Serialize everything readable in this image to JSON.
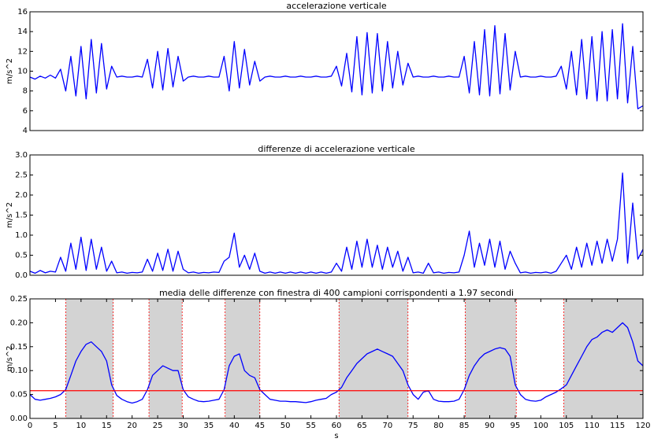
{
  "chart_data": [
    {
      "type": "line",
      "title": "accelerazione verticale",
      "ylabel": "m/s^2",
      "color": "#0000ff",
      "xlim": [
        0,
        120
      ],
      "ylim": [
        4,
        16
      ],
      "yticks": [
        4,
        6,
        8,
        10,
        12,
        14,
        16
      ],
      "x": [
        0,
        1,
        2,
        3,
        4,
        5,
        6,
        7,
        8,
        9,
        10,
        11,
        12,
        13,
        14,
        15,
        16,
        17,
        18,
        19,
        20,
        21,
        22,
        23,
        24,
        25,
        26,
        27,
        28,
        29,
        30,
        31,
        32,
        33,
        34,
        35,
        36,
        37,
        38,
        39,
        40,
        41,
        42,
        43,
        44,
        45,
        46,
        47,
        48,
        49,
        50,
        51,
        52,
        53,
        54,
        55,
        56,
        57,
        58,
        59,
        60,
        61,
        62,
        63,
        64,
        65,
        66,
        67,
        68,
        69,
        70,
        71,
        72,
        73,
        74,
        75,
        76,
        77,
        78,
        79,
        80,
        81,
        82,
        83,
        84,
        85,
        86,
        87,
        88,
        89,
        90,
        91,
        92,
        93,
        94,
        95,
        96,
        97,
        98,
        99,
        100,
        101,
        102,
        103,
        104,
        105,
        106,
        107,
        108,
        109,
        110,
        111,
        112,
        113,
        114,
        115,
        116,
        117,
        118,
        119,
        120
      ],
      "values": [
        9.4,
        9.2,
        9.5,
        9.3,
        9.6,
        9.3,
        10.2,
        8.0,
        11.5,
        7.5,
        12.5,
        7.2,
        13.2,
        7.8,
        12.8,
        8.2,
        10.5,
        9.4,
        9.5,
        9.4,
        9.4,
        9.5,
        9.4,
        11.2,
        8.3,
        12.0,
        8.1,
        12.3,
        8.4,
        11.5,
        9.0,
        9.4,
        9.5,
        9.4,
        9.4,
        9.5,
        9.4,
        9.4,
        11.5,
        8.0,
        13.0,
        8.3,
        12.2,
        8.6,
        11.0,
        9.0,
        9.4,
        9.5,
        9.4,
        9.4,
        9.5,
        9.4,
        9.4,
        9.5,
        9.4,
        9.4,
        9.5,
        9.4,
        9.4,
        9.5,
        10.5,
        8.5,
        11.8,
        7.9,
        13.5,
        7.6,
        13.9,
        7.8,
        13.8,
        8.0,
        13.0,
        8.3,
        12.0,
        8.6,
        10.8,
        9.4,
        9.5,
        9.4,
        9.4,
        9.5,
        9.4,
        9.4,
        9.5,
        9.4,
        9.4,
        11.5,
        7.8,
        13.0,
        7.6,
        14.2,
        7.5,
        14.6,
        7.7,
        13.8,
        8.1,
        12.0,
        9.4,
        9.5,
        9.4,
        9.4,
        9.5,
        9.4,
        9.4,
        9.5,
        10.5,
        8.2,
        12.0,
        7.6,
        13.2,
        7.2,
        13.5,
        7.0,
        14.0,
        7.0,
        14.2,
        7.2,
        14.8,
        6.8,
        12.5,
        6.2,
        6.5
      ]
    },
    {
      "type": "line",
      "title": "differenze di accelerazione verticale",
      "ylabel": "m/s^2",
      "color": "#0000ff",
      "xlim": [
        0,
        120
      ],
      "ylim": [
        0,
        3
      ],
      "yticks": [
        {
          "value": 0,
          "label": "0.0"
        },
        0.5,
        {
          "value": 1,
          "label": "1.0"
        },
        1.5,
        {
          "value": 2,
          "label": "2.0"
        },
        2.5,
        {
          "value": 3,
          "label": "3.0"
        }
      ],
      "x": [
        0,
        1,
        2,
        3,
        4,
        5,
        6,
        7,
        8,
        9,
        10,
        11,
        12,
        13,
        14,
        15,
        16,
        17,
        18,
        19,
        20,
        21,
        22,
        23,
        24,
        25,
        26,
        27,
        28,
        29,
        30,
        31,
        32,
        33,
        34,
        35,
        36,
        37,
        38,
        39,
        40,
        41,
        42,
        43,
        44,
        45,
        46,
        47,
        48,
        49,
        50,
        51,
        52,
        53,
        54,
        55,
        56,
        57,
        58,
        59,
        60,
        61,
        62,
        63,
        64,
        65,
        66,
        67,
        68,
        69,
        70,
        71,
        72,
        73,
        74,
        75,
        76,
        77,
        78,
        79,
        80,
        81,
        82,
        83,
        84,
        85,
        86,
        87,
        88,
        89,
        90,
        91,
        92,
        93,
        94,
        95,
        96,
        97,
        98,
        99,
        100,
        101,
        102,
        103,
        104,
        105,
        106,
        107,
        108,
        109,
        110,
        111,
        112,
        113,
        114,
        115,
        116,
        117,
        118,
        119,
        120
      ],
      "values": [
        0.1,
        0.05,
        0.12,
        0.06,
        0.1,
        0.08,
        0.45,
        0.1,
        0.8,
        0.15,
        0.95,
        0.12,
        0.9,
        0.15,
        0.7,
        0.1,
        0.35,
        0.06,
        0.08,
        0.05,
        0.07,
        0.06,
        0.08,
        0.4,
        0.1,
        0.55,
        0.12,
        0.65,
        0.1,
        0.6,
        0.15,
        0.06,
        0.08,
        0.05,
        0.07,
        0.06,
        0.08,
        0.07,
        0.35,
        0.45,
        1.05,
        0.2,
        0.5,
        0.15,
        0.55,
        0.1,
        0.05,
        0.08,
        0.05,
        0.08,
        0.05,
        0.08,
        0.05,
        0.08,
        0.05,
        0.08,
        0.05,
        0.08,
        0.05,
        0.08,
        0.3,
        0.1,
        0.7,
        0.15,
        0.85,
        0.2,
        0.9,
        0.2,
        0.75,
        0.15,
        0.7,
        0.2,
        0.6,
        0.1,
        0.45,
        0.06,
        0.08,
        0.05,
        0.3,
        0.06,
        0.08,
        0.05,
        0.07,
        0.06,
        0.08,
        0.5,
        1.1,
        0.2,
        0.8,
        0.25,
        0.9,
        0.2,
        0.85,
        0.15,
        0.6,
        0.3,
        0.06,
        0.08,
        0.05,
        0.07,
        0.06,
        0.08,
        0.05,
        0.1,
        0.3,
        0.5,
        0.15,
        0.7,
        0.2,
        0.8,
        0.25,
        0.85,
        0.3,
        0.9,
        0.35,
        0.9,
        2.55,
        0.3,
        1.8,
        0.4,
        0.65
      ]
    },
    {
      "type": "line",
      "title": "media delle differenze con finestra di 400 campioni corrispondenti a 1.97 secondi",
      "ylabel": "m/s^2",
      "xlabel": "s",
      "color": "#0000ff",
      "threshold": 0.058,
      "threshold_color": "#ff0000",
      "regions": [
        [
          7,
          16.3
        ],
        [
          23.3,
          29.8
        ],
        [
          38.2,
          45
        ],
        [
          60.5,
          74
        ],
        [
          85.2,
          95.2
        ],
        [
          104.5,
          120
        ]
      ],
      "region_color": "#d3d3d3",
      "xlim": [
        0,
        120
      ],
      "xticks": [
        0,
        5,
        10,
        15,
        20,
        25,
        30,
        35,
        40,
        45,
        50,
        55,
        60,
        65,
        70,
        75,
        80,
        85,
        90,
        95,
        100,
        105,
        110,
        115,
        120
      ],
      "ylim": [
        0,
        0.25
      ],
      "yticks": [
        {
          "value": 0,
          "label": "0.00"
        },
        0.05,
        {
          "value": 0.1,
          "label": "0.10"
        },
        0.15,
        {
          "value": 0.2,
          "label": "0.20"
        },
        0.25
      ],
      "x": [
        0,
        1,
        2,
        3,
        4,
        5,
        6,
        7,
        8,
        9,
        10,
        11,
        12,
        13,
        14,
        15,
        16,
        17,
        18,
        19,
        20,
        21,
        22,
        23,
        24,
        25,
        26,
        27,
        28,
        29,
        30,
        31,
        32,
        33,
        34,
        35,
        36,
        37,
        38,
        39,
        40,
        41,
        42,
        43,
        44,
        45,
        46,
        47,
        48,
        49,
        50,
        51,
        52,
        53,
        54,
        55,
        56,
        57,
        58,
        59,
        60,
        61,
        62,
        63,
        64,
        65,
        66,
        67,
        68,
        69,
        70,
        71,
        72,
        73,
        74,
        75,
        76,
        77,
        78,
        79,
        80,
        81,
        82,
        83,
        84,
        85,
        86,
        87,
        88,
        89,
        90,
        91,
        92,
        93,
        94,
        95,
        96,
        97,
        98,
        99,
        100,
        101,
        102,
        103,
        104,
        105,
        106,
        107,
        108,
        109,
        110,
        111,
        112,
        113,
        114,
        115,
        116,
        117,
        118,
        119,
        120
      ],
      "values": [
        0.05,
        0.04,
        0.038,
        0.04,
        0.042,
        0.045,
        0.05,
        0.06,
        0.09,
        0.12,
        0.14,
        0.155,
        0.16,
        0.15,
        0.14,
        0.12,
        0.07,
        0.048,
        0.04,
        0.035,
        0.032,
        0.035,
        0.04,
        0.06,
        0.09,
        0.1,
        0.11,
        0.105,
        0.1,
        0.1,
        0.06,
        0.045,
        0.04,
        0.036,
        0.035,
        0.036,
        0.038,
        0.04,
        0.06,
        0.11,
        0.13,
        0.135,
        0.1,
        0.09,
        0.085,
        0.06,
        0.05,
        0.04,
        0.038,
        0.036,
        0.036,
        0.035,
        0.035,
        0.034,
        0.033,
        0.035,
        0.038,
        0.04,
        0.042,
        0.05,
        0.055,
        0.065,
        0.085,
        0.1,
        0.115,
        0.125,
        0.135,
        0.14,
        0.145,
        0.14,
        0.135,
        0.13,
        0.115,
        0.1,
        0.07,
        0.05,
        0.04,
        0.055,
        0.058,
        0.04,
        0.036,
        0.035,
        0.035,
        0.036,
        0.04,
        0.06,
        0.09,
        0.11,
        0.125,
        0.135,
        0.14,
        0.145,
        0.148,
        0.145,
        0.13,
        0.07,
        0.05,
        0.04,
        0.037,
        0.036,
        0.038,
        0.045,
        0.05,
        0.055,
        0.062,
        0.07,
        0.09,
        0.11,
        0.13,
        0.15,
        0.165,
        0.17,
        0.18,
        0.185,
        0.18,
        0.19,
        0.2,
        0.19,
        0.16,
        0.12,
        0.11
      ]
    }
  ]
}
